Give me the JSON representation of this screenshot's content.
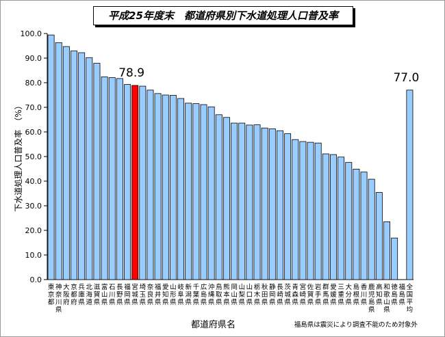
{
  "title": "平成25年度末　都道府県別下水道処理人口普及率",
  "footnote": "福島県は震災により調査不能のため対象外",
  "colors": {
    "bar": "#99ccff",
    "highlight": "#ff0000",
    "stroke": "#000000"
  },
  "chart_data": {
    "type": "bar",
    "title": "平成25年度末　都道府県別下水道処理人口普及率",
    "xlabel": "都道府県名",
    "ylabel": "下水道処理人口普及率　（%）",
    "ylim": [
      0,
      100
    ],
    "yticks": [
      "0.0",
      "10.0",
      "20.0",
      "30.0",
      "40.0",
      "50.0",
      "60.0",
      "70.0",
      "80.0",
      "90.0",
      "100.0"
    ],
    "grid": false,
    "categories": [
      "東京都",
      "神奈川県",
      "大阪府",
      "京都府",
      "兵庫県",
      "北海道",
      "滋賀県",
      "富山県",
      "石川県",
      "長野県",
      "福岡県",
      "宮城県",
      "埼玉県",
      "奈良県",
      "福井県",
      "愛知県",
      "山形県",
      "岐阜県",
      "新潟県",
      "千葉県",
      "広島県",
      "沖縄県",
      "鳥取県",
      "熊本県",
      "岡山県",
      "山梨県",
      "山口県",
      "栃木県",
      "秋田県",
      "静岡県",
      "長崎県",
      "茨城県",
      "青森県",
      "宮崎県",
      "佐賀県",
      "岩手県",
      "群馬県",
      "愛媛県",
      "三重県",
      "大分県",
      "島根県",
      "香川県",
      "鹿児島県",
      "高知県",
      "和歌山県",
      "徳島県",
      "福島県",
      "全国平均"
    ],
    "values": [
      99.4,
      96.3,
      94.7,
      92.9,
      92.2,
      90.2,
      87.9,
      82.4,
      82.1,
      81.7,
      79.3,
      78.9,
      78.6,
      77.0,
      75.6,
      75.0,
      74.9,
      73.6,
      71.7,
      71.5,
      71.1,
      70.2,
      67.0,
      65.9,
      63.6,
      63.6,
      62.8,
      62.9,
      61.6,
      61.3,
      60.5,
      59.3,
      56.9,
      56.1,
      55.8,
      55.5,
      51.1,
      50.8,
      49.8,
      47.6,
      44.9,
      43.7,
      40.8,
      35.4,
      23.5,
      16.9,
      null,
      77.0
    ],
    "highlight_category": "宮城県",
    "data_labels": [
      {
        "category": "宮城県",
        "text": "78.9"
      },
      {
        "category": "全国平均",
        "text": "77.0"
      }
    ]
  }
}
